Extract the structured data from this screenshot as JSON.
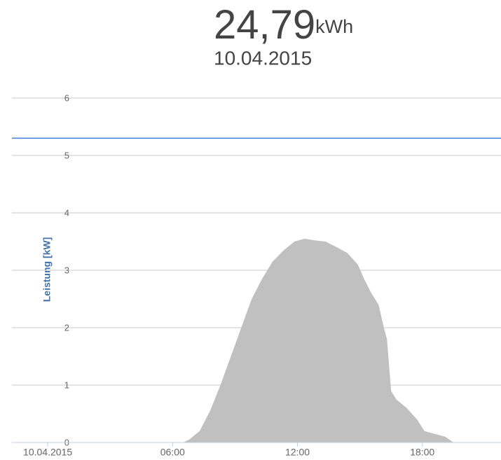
{
  "chart_data": {
    "type": "area",
    "title": "24,79",
    "title_unit": "kWh",
    "subtitle": "10.04.2015",
    "y_axis_label": "Leistung [kW]",
    "x": [
      6.5,
      6.8,
      7.3,
      7.8,
      8.3,
      8.8,
      9.3,
      9.8,
      10.3,
      10.8,
      11.35,
      11.85,
      12.35,
      12.85,
      13.35,
      13.9,
      14.4,
      14.9,
      15.2,
      15.55,
      15.9,
      16.15,
      16.3,
      16.5,
      16.75,
      17.25,
      17.75,
      18.1,
      18.6,
      19.1,
      19.5
    ],
    "values": [
      0,
      0.05,
      0.2,
      0.55,
      1.0,
      1.5,
      2.0,
      2.5,
      2.85,
      3.15,
      3.35,
      3.5,
      3.55,
      3.52,
      3.5,
      3.4,
      3.3,
      3.1,
      2.85,
      2.6,
      2.4,
      2.0,
      1.8,
      0.9,
      0.75,
      0.6,
      0.4,
      0.2,
      0.15,
      0.1,
      0
    ],
    "color": "#c0c0c0",
    "reference_line": 5.3,
    "reference_color": "#3d7be0",
    "xlim": [
      -1.72,
      21.78
    ],
    "xticks": [
      {
        "value": 0,
        "label": "10.04.2015"
      },
      {
        "value": 6,
        "label": "06:00"
      },
      {
        "value": 12,
        "label": "12:00"
      },
      {
        "value": 18,
        "label": "18:00"
      }
    ],
    "ylim": [
      0,
      6
    ],
    "yticks": [
      0,
      1,
      2,
      3,
      4,
      5,
      6
    ],
    "grid": true
  }
}
